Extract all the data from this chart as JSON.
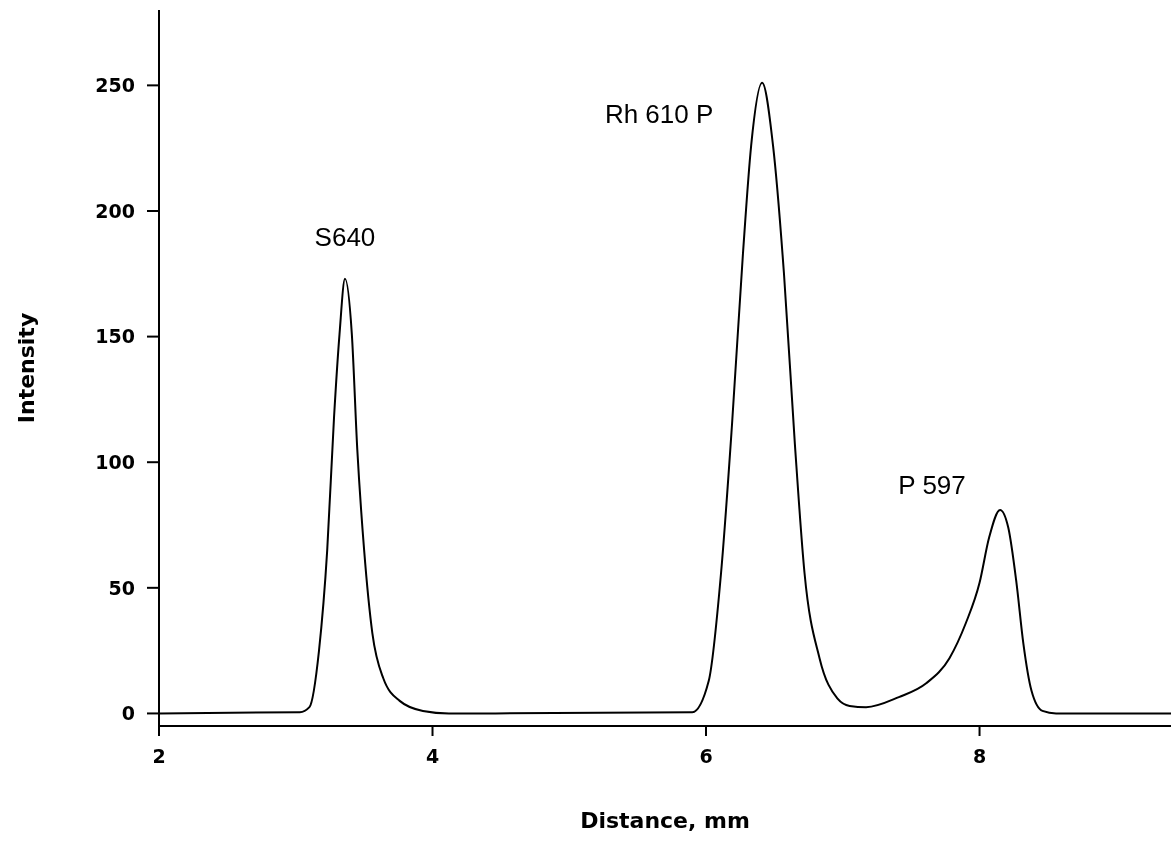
{
  "chart_data": {
    "type": "line",
    "xlabel": "Distance, mm",
    "ylabel": "Intensity",
    "xlim": [
      2,
      9.4
    ],
    "xticks": [
      2,
      4,
      6,
      8
    ],
    "ylim": [
      -5,
      280
    ],
    "yticks": [
      0,
      50,
      100,
      150,
      200,
      250
    ],
    "grid": false,
    "legend": false,
    "marker": "none",
    "line_style": "solid",
    "series": [
      {
        "color": "#000000",
        "x": [
          2,
          3.03,
          3.1,
          3.17,
          3.23,
          3.28,
          3.32,
          3.36,
          3.41,
          3.45,
          3.5,
          3.56,
          3.64,
          3.76,
          3.93,
          4.12,
          5.9,
          6.02,
          6.11,
          6.19,
          6.27,
          6.33,
          6.41,
          6.49,
          6.57,
          6.65,
          6.72,
          6.83,
          6.96,
          7.05,
          7.17,
          7.41,
          7.61,
          7.78,
          7.9,
          8.0,
          8.07,
          8.15,
          8.21,
          8.27,
          8.32,
          8.38,
          8.46,
          8.56,
          9.4
        ],
        "values": [
          0,
          0.5,
          2.5,
          25,
          65,
          118,
          151,
          173,
          151,
          105,
          65,
          32,
          14,
          5,
          1,
          0,
          0.5,
          13,
          56,
          115,
          183,
          226,
          251,
          226,
          175,
          107,
          56,
          22,
          6,
          3,
          2.5,
          6.5,
          12,
          22,
          36,
          52,
          70,
          81,
          74,
          52,
          28,
          9,
          1,
          0,
          0
        ]
      }
    ],
    "annotations": [
      {
        "text": "S640",
        "x": 3.36,
        "y": 173
      },
      {
        "text": "Rh 610 P",
        "x": 6.41,
        "y": 251
      },
      {
        "text": "P 597",
        "x": 8.15,
        "y": 81
      }
    ]
  }
}
